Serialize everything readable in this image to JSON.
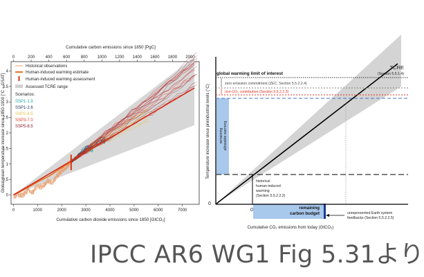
{
  "caption": "IPCC AR6 WG1 Fig 5.31より",
  "colors": {
    "historical": "#e8a070",
    "warming_estimate": "#e87020",
    "assessment": "#e03010",
    "tcre_range": "#d0d0d0",
    "budget_fill": "#a8c8ec",
    "zec_line": "#808080",
    "non_co2_line": "#e03020",
    "limit_dashed": "#4472c4"
  },
  "chart_data": [
    {
      "type": "line",
      "title": "",
      "top_axis_label": "Cumulative carbon emissions since 1850 [PgC]",
      "top_ticks": [
        "0",
        "200",
        "400",
        "600",
        "800",
        "1000",
        "1200",
        "1400",
        "1600",
        "1800",
        "2000"
      ],
      "xlabel": "Cumulative carbon dioxide emissions since 1850 [GtCO₂]",
      "x_ticks": [
        "0",
        "1000",
        "2000",
        "3000",
        "4000",
        "5000",
        "6000",
        "7000"
      ],
      "ylabel": "Global mean temperature increase since 1850-1900 [°C – GSAT]",
      "y_ticks": [
        "0",
        "0.5",
        "1",
        "1.5",
        "2",
        "2.5",
        "3",
        "3.5",
        "4"
      ],
      "xlim": [
        -100,
        7700
      ],
      "ylim": [
        -0.3,
        4.3
      ],
      "legend": [
        {
          "label": "Historical observations",
          "kind": "line",
          "color": "#e8a070"
        },
        {
          "label": "Human-induced warming estimate",
          "kind": "line",
          "color": "#e87020"
        },
        {
          "label": "Human-induced warming assessment",
          "kind": "bar",
          "color": "#e03010"
        },
        {
          "label": "Assessed TCRE range",
          "kind": "patch",
          "color": "#d0d0d0"
        }
      ],
      "scenarios_title": "Scenarios:",
      "scenarios": [
        {
          "name": "SSP1-1.9",
          "color": "#1aa6a6"
        },
        {
          "name": "SSP1-2.6",
          "color": "#1f3560"
        },
        {
          "name": "SSP2-4.5",
          "color": "#e5c04a"
        },
        {
          "name": "SSP3-7.0",
          "color": "#e03a2a"
        },
        {
          "name": "SSP5-8.5",
          "color": "#8a1a2a"
        }
      ],
      "tcre_central": [
        [
          0,
          0
        ],
        [
          7500,
          3.45
        ]
      ],
      "tcre_band_lower": [
        [
          0,
          0
        ],
        [
          7500,
          2.25
        ]
      ],
      "tcre_band_upper": [
        [
          0,
          0
        ],
        [
          7500,
          4.45
        ]
      ],
      "human_induced_estimate": [
        [
          0,
          0
        ],
        [
          500,
          0.2
        ],
        [
          1000,
          0.42
        ],
        [
          1500,
          0.62
        ],
        [
          2000,
          0.88
        ],
        [
          2390,
          1.07
        ]
      ],
      "assessment_point": {
        "x": 2390,
        "y": 1.07,
        "low": 0.8,
        "high": 1.3
      },
      "historical_observations": [
        [
          0,
          -0.05
        ],
        [
          200,
          0.02
        ],
        [
          400,
          0.0
        ],
        [
          600,
          0.15
        ],
        [
          800,
          0.1
        ],
        [
          1000,
          0.3
        ],
        [
          1200,
          0.25
        ],
        [
          1400,
          0.45
        ],
        [
          1600,
          0.4
        ],
        [
          1800,
          0.6
        ],
        [
          2000,
          0.78
        ],
        [
          2200,
          0.9
        ],
        [
          2390,
          1.1
        ]
      ],
      "scenario_paths": [
        {
          "scenario": "SSP1-1.9",
          "points": [
            [
              2390,
              1.07
            ],
            [
              2800,
              1.35
            ],
            [
              3100,
              1.5
            ],
            [
              3300,
              1.48
            ]
          ]
        },
        {
          "scenario": "SSP1-2.6",
          "points": [
            [
              2390,
              1.07
            ],
            [
              3000,
              1.5
            ],
            [
              3600,
              1.75
            ],
            [
              3800,
              1.8
            ]
          ]
        },
        {
          "scenario": "SSP2-4.5",
          "points": [
            [
              2390,
              1.07
            ],
            [
              3500,
              1.7
            ],
            [
              4800,
              2.3
            ],
            [
              5600,
              2.6
            ]
          ]
        },
        {
          "scenario": "SSP3-7.0",
          "points": [
            [
              2390,
              1.07
            ],
            [
              4000,
              2.0
            ],
            [
              5800,
              2.95
            ],
            [
              7500,
              3.85
            ]
          ]
        },
        {
          "scenario": "SSP5-8.5",
          "points": [
            [
              2390,
              1.07
            ],
            [
              4200,
              2.1
            ],
            [
              6000,
              3.1
            ],
            [
              7600,
              4.1
            ]
          ]
        }
      ]
    },
    {
      "type": "diagram",
      "title": "",
      "ylabel": "Temperature increase since preindustrial levels (°C)",
      "xlabel": "Cumulative CO₂ emissions from today (GtCO₂)",
      "x_zero_label": "0",
      "y_zero_label": "0",
      "tcre_label": "TCRE",
      "tcre_section": "(Section 5.5.1.4)",
      "limit_label": "global warming limit of interest",
      "zec_label": "zero emission commitment (ZEC, Section 5.5.2.2.4)",
      "non_co2_label": "non-CO₂ contribution (Section 5.5.2.2.3)",
      "remaining_warming_label": [
        "remaining",
        "allowable warming"
      ],
      "historical_label": [
        "historical",
        "human-induced",
        "warming",
        "(Section 5.5.2.2.2)"
      ],
      "budget_label": [
        "remaining",
        "carbon budget"
      ],
      "unrepresented_label": [
        "unrepresented Earth system",
        "feedbacks (Section 5.5.2.2.5)"
      ]
    }
  ]
}
